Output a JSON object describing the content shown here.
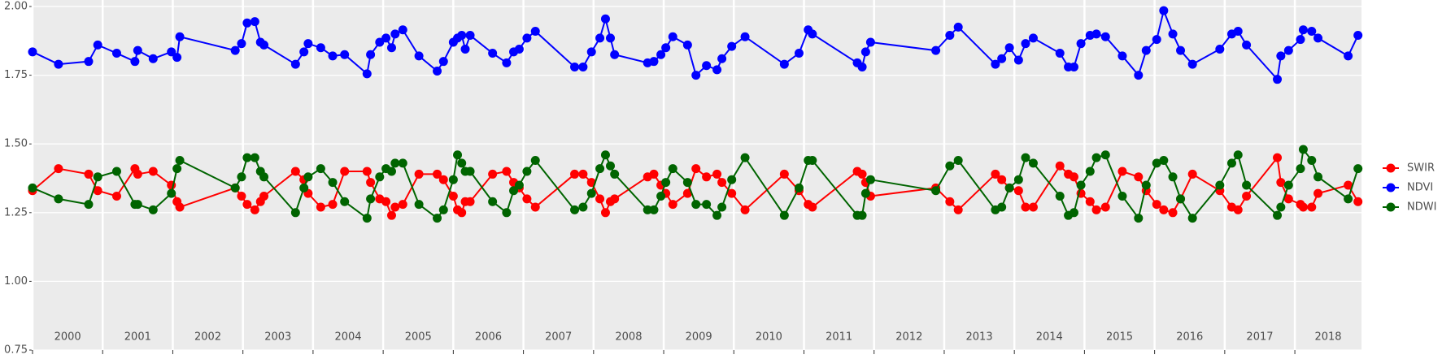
{
  "chart_data": {
    "type": "line",
    "x": [
      2000.0,
      2000.37,
      2000.8,
      2000.93,
      2001.2,
      2001.46,
      2001.5,
      2001.72,
      2001.98,
      2002.06,
      2002.1,
      2002.89,
      2002.98,
      2003.06,
      2003.17,
      2003.25,
      2003.3,
      2003.75,
      2003.87,
      2003.93,
      2004.11,
      2004.28,
      2004.45,
      2004.77,
      2004.82,
      2004.95,
      2005.04,
      2005.12,
      2005.17,
      2005.28,
      2005.51,
      2005.77,
      2005.86,
      2006.0,
      2006.06,
      2006.12,
      2006.17,
      2006.24,
      2006.56,
      2006.76,
      2006.86,
      2006.94,
      2007.05,
      2007.17,
      2007.73,
      2007.85,
      2007.97,
      2008.09,
      2008.17,
      2008.24,
      2008.3,
      2008.77,
      2008.86,
      2008.96,
      2009.03,
      2009.13,
      2009.34,
      2009.46,
      2009.61,
      2009.76,
      2009.83,
      2009.97,
      2010.16,
      2010.72,
      2010.93,
      2011.06,
      2011.12,
      2011.76,
      2011.83,
      2011.88,
      2011.95,
      2012.88,
      2013.08,
      2013.2,
      2013.73,
      2013.82,
      2013.93,
      2014.06,
      2014.16,
      2014.27,
      2014.65,
      2014.77,
      2014.85,
      2014.95,
      2015.08,
      2015.17,
      2015.3,
      2015.54,
      2015.77,
      2015.88,
      2016.03,
      2016.13,
      2016.26,
      2016.37,
      2016.54,
      2016.93,
      2017.1,
      2017.19,
      2017.31,
      2017.75,
      2017.8,
      2017.91,
      2018.08,
      2018.12,
      2018.24,
      2018.33,
      2018.76,
      2018.9
    ],
    "series": [
      {
        "name": "SWIR",
        "color": "#ff0000",
        "values": [
          1.33,
          1.41,
          1.39,
          1.33,
          1.31,
          1.41,
          1.39,
          1.4,
          1.35,
          1.29,
          1.27,
          1.34,
          1.31,
          1.28,
          1.26,
          1.29,
          1.31,
          1.4,
          1.37,
          1.32,
          1.27,
          1.28,
          1.4,
          1.4,
          1.36,
          1.3,
          1.29,
          1.24,
          1.27,
          1.28,
          1.39,
          1.39,
          1.37,
          1.31,
          1.26,
          1.25,
          1.29,
          1.29,
          1.39,
          1.4,
          1.36,
          1.34,
          1.3,
          1.27,
          1.39,
          1.39,
          1.36,
          1.3,
          1.25,
          1.29,
          1.3,
          1.38,
          1.39,
          1.35,
          1.32,
          1.28,
          1.32,
          1.41,
          1.38,
          1.39,
          1.36,
          1.32,
          1.26,
          1.39,
          1.33,
          1.28,
          1.27,
          1.4,
          1.39,
          1.36,
          1.31,
          1.34,
          1.29,
          1.26,
          1.39,
          1.37,
          1.34,
          1.33,
          1.27,
          1.27,
          1.42,
          1.39,
          1.38,
          1.32,
          1.29,
          1.26,
          1.27,
          1.4,
          1.38,
          1.33,
          1.28,
          1.26,
          1.25,
          1.3,
          1.39,
          1.33,
          1.27,
          1.26,
          1.31,
          1.45,
          1.36,
          1.3,
          1.28,
          1.27,
          1.27,
          1.32,
          1.35,
          1.29
        ]
      },
      {
        "name": "NDVI",
        "color": "#0000ff",
        "values": [
          1.835,
          1.79,
          1.8,
          1.86,
          1.83,
          1.8,
          1.84,
          1.81,
          1.835,
          1.815,
          1.89,
          1.84,
          1.865,
          1.94,
          1.945,
          1.87,
          1.86,
          1.79,
          1.835,
          1.865,
          1.85,
          1.82,
          1.825,
          1.755,
          1.825,
          1.87,
          1.885,
          1.85,
          1.9,
          1.915,
          1.82,
          1.765,
          1.8,
          1.87,
          1.885,
          1.895,
          1.845,
          1.895,
          1.83,
          1.795,
          1.835,
          1.845,
          1.885,
          1.91,
          1.78,
          1.78,
          1.835,
          1.885,
          1.955,
          1.885,
          1.825,
          1.795,
          1.8,
          1.825,
          1.85,
          1.89,
          1.86,
          1.75,
          1.785,
          1.77,
          1.81,
          1.855,
          1.89,
          1.79,
          1.83,
          1.915,
          1.9,
          1.795,
          1.78,
          1.835,
          1.87,
          1.84,
          1.895,
          1.925,
          1.79,
          1.81,
          1.85,
          1.805,
          1.865,
          1.885,
          1.83,
          1.78,
          1.78,
          1.865,
          1.895,
          1.9,
          1.89,
          1.82,
          1.75,
          1.84,
          1.88,
          1.985,
          1.9,
          1.84,
          1.79,
          1.845,
          1.9,
          1.91,
          1.86,
          1.735,
          1.82,
          1.84,
          1.88,
          1.915,
          1.91,
          1.885,
          1.82,
          1.895
        ]
      },
      {
        "name": "NDWI",
        "color": "#006400",
        "values": [
          1.34,
          1.3,
          1.28,
          1.38,
          1.4,
          1.28,
          1.28,
          1.26,
          1.32,
          1.41,
          1.44,
          1.34,
          1.38,
          1.45,
          1.45,
          1.4,
          1.38,
          1.25,
          1.34,
          1.38,
          1.41,
          1.36,
          1.29,
          1.23,
          1.3,
          1.38,
          1.41,
          1.4,
          1.43,
          1.43,
          1.28,
          1.23,
          1.26,
          1.37,
          1.46,
          1.43,
          1.4,
          1.4,
          1.29,
          1.25,
          1.33,
          1.35,
          1.4,
          1.44,
          1.26,
          1.27,
          1.32,
          1.41,
          1.46,
          1.42,
          1.39,
          1.26,
          1.26,
          1.31,
          1.36,
          1.41,
          1.36,
          1.28,
          1.28,
          1.24,
          1.27,
          1.37,
          1.45,
          1.24,
          1.34,
          1.44,
          1.44,
          1.24,
          1.24,
          1.32,
          1.37,
          1.33,
          1.42,
          1.44,
          1.26,
          1.27,
          1.34,
          1.37,
          1.45,
          1.43,
          1.31,
          1.24,
          1.25,
          1.35,
          1.4,
          1.45,
          1.46,
          1.31,
          1.23,
          1.35,
          1.43,
          1.44,
          1.38,
          1.3,
          1.23,
          1.35,
          1.43,
          1.46,
          1.35,
          1.24,
          1.27,
          1.35,
          1.41,
          1.48,
          1.44,
          1.38,
          1.3,
          1.41
        ]
      }
    ],
    "xlim": [
      2000,
      2018.95
    ],
    "xticks": [
      2000,
      2001,
      2002,
      2003,
      2004,
      2005,
      2006,
      2007,
      2008,
      2009,
      2010,
      2011,
      2012,
      2013,
      2014,
      2015,
      2016,
      2017,
      2018
    ],
    "ylim": [
      0.75,
      2.0
    ],
    "yticks": [
      0.75,
      {
        "value": 1,
        "label": "1.00"
      },
      1.25,
      {
        "value": 1.5,
        "label": "1.50"
      },
      1.75,
      {
        "value": 2,
        "label": "2.00"
      }
    ],
    "grid": true,
    "legend": "right"
  }
}
